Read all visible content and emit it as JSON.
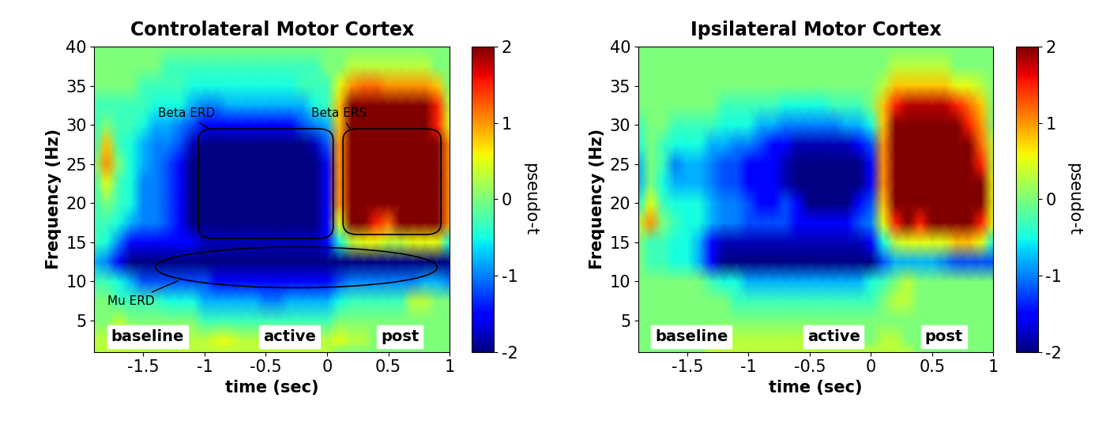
{
  "chart_data": [
    {
      "type": "heatmap",
      "title": "Controlateral Motor Cortex",
      "x_label": "time (sec)",
      "y_label": "Frequency (Hz)",
      "x": [
        -1.9,
        -1.8,
        -1.7,
        -1.6,
        -1.5,
        -1.4,
        -1.3,
        -1.2,
        -1.1,
        -1,
        -0.9,
        -0.8,
        -0.7,
        -0.6,
        -0.5,
        -0.4,
        -0.3,
        -0.2,
        -0.1,
        0,
        0.1,
        0.2,
        0.3,
        0.4,
        0.5,
        0.6,
        0.7,
        0.8,
        0.9,
        1
      ],
      "y": [
        1,
        2.5,
        5,
        7.5,
        10,
        12.5,
        15,
        17.5,
        20,
        22.5,
        25,
        27.5,
        30,
        32.5,
        35,
        37.5,
        40
      ],
      "cells": [
        [
          0.3,
          0.3,
          0.3,
          0.3,
          0.3,
          0.3,
          0.3,
          0.3,
          0.3,
          0.3,
          0.3,
          0.3,
          0.3,
          0.3,
          0.3,
          0.3,
          0.3,
          0.3,
          0.3,
          0.3,
          0,
          0,
          0,
          0,
          0,
          0,
          0,
          0,
          0,
          0
        ],
        [
          0.3,
          0.3,
          0.5,
          0.3,
          0,
          0,
          0.3,
          0.3,
          0.3,
          0.3,
          0.5,
          0.5,
          0.3,
          0.3,
          0.3,
          0.3,
          0.3,
          0.3,
          0.3,
          0.3,
          0.5,
          0.3,
          0.3,
          0,
          0,
          0,
          0,
          0,
          0,
          0
        ],
        [
          0,
          0,
          0.3,
          0,
          0,
          0,
          0,
          0,
          0,
          -0.3,
          -0.3,
          -0.3,
          -0.3,
          -0.3,
          -0.3,
          -0.3,
          -0.3,
          -0.3,
          -0.3,
          -0.3,
          0,
          0,
          0,
          0,
          0,
          0,
          0,
          0,
          0,
          0
        ],
        [
          0,
          0,
          -0.3,
          -0.3,
          -0.3,
          -0.3,
          -0.5,
          -0.5,
          -0.5,
          -0.8,
          -0.8,
          -0.8,
          -0.8,
          -0.8,
          -1,
          -1,
          -0.8,
          -0.8,
          -0.8,
          -0.8,
          -0.5,
          -0.3,
          -0.3,
          -0.3,
          -0.3,
          -0.3,
          0.3,
          0.3,
          0,
          0
        ],
        [
          -0.3,
          -0.3,
          -0.5,
          -0.8,
          -1.2,
          -1.2,
          -1.2,
          -1.2,
          -1.2,
          -1.2,
          -1.5,
          -1.5,
          -1.5,
          -1.5,
          -1.5,
          -1.5,
          -1.5,
          -1.5,
          -1.5,
          -1.5,
          -1.2,
          -1,
          -1,
          -1,
          -1,
          -1,
          -1,
          -0.8,
          -0.8,
          -1
        ],
        [
          -0.8,
          -1,
          -1.5,
          -2,
          -2,
          -2,
          -2,
          -2,
          -2,
          -2,
          -2,
          -2,
          -2,
          -2,
          -2,
          -2,
          -2,
          -2,
          -2,
          -2,
          -2,
          -2,
          -2,
          -2,
          -2,
          -2,
          -2,
          -2,
          -2,
          -2
        ],
        [
          -0.3,
          -0.5,
          -1,
          -1.5,
          -1.5,
          -1.5,
          -1.5,
          -1.5,
          -1.5,
          -1.8,
          -1.8,
          -1.8,
          -1.8,
          -1.8,
          -1.8,
          -1.8,
          -1.8,
          -1.8,
          -1.8,
          -1.5,
          -0.5,
          0.3,
          0.5,
          0.5,
          0.3,
          0.3,
          0.5,
          0.5,
          0.5,
          -0.5
        ],
        [
          -0.3,
          -0.3,
          -0.5,
          -0.8,
          -1,
          -1,
          -1.2,
          -1.5,
          -2,
          -2,
          -2,
          -2,
          -2,
          -2,
          -2,
          -2,
          -2,
          -2,
          -2,
          -1.5,
          0.5,
          2,
          2,
          1.5,
          1.2,
          2,
          2,
          2,
          2,
          1
        ],
        [
          -0.3,
          0,
          -0.3,
          -0.5,
          -1,
          -1,
          -1.2,
          -1.5,
          -2,
          -2,
          -2,
          -2,
          -2,
          -2,
          -2,
          -2,
          -2,
          -2,
          -2,
          -1.5,
          1,
          2,
          2,
          2,
          2,
          2,
          2,
          2,
          2,
          1
        ],
        [
          -0.3,
          0.5,
          -0.3,
          -0.5,
          -1,
          -1,
          -1.2,
          -1.5,
          -2,
          -2,
          -2,
          -2,
          -2,
          -2,
          -2,
          -2,
          -2,
          -2,
          -2,
          -1.5,
          1,
          2,
          2,
          2,
          2,
          2,
          2,
          2,
          2,
          1
        ],
        [
          0,
          1,
          0,
          -0.5,
          -0.8,
          -1,
          -1.2,
          -1.5,
          -2,
          -2,
          -2,
          -2,
          -2,
          -2,
          -2,
          -2,
          -2,
          -2,
          -2,
          -1.5,
          1,
          2,
          2,
          2,
          2,
          2,
          2,
          2,
          2,
          1
        ],
        [
          -0.3,
          0.8,
          -0.3,
          -0.5,
          -0.8,
          -1,
          -1,
          -1.2,
          -1.8,
          -2,
          -2,
          -2,
          -2,
          -2,
          -2,
          -2,
          -2,
          -2,
          -1.8,
          -1.2,
          1,
          2,
          2,
          2,
          2,
          2,
          2,
          2,
          2,
          1
        ],
        [
          -0.3,
          0,
          -0.3,
          -0.3,
          -0.5,
          -0.8,
          -0.8,
          -1,
          -1.2,
          -1.5,
          -1.5,
          -1.5,
          -1.5,
          -1.5,
          -1.5,
          -1.5,
          -1.5,
          -1.2,
          -1,
          -0.8,
          0.8,
          2,
          2,
          2,
          2,
          2,
          2,
          2,
          1.5,
          0.5
        ],
        [
          -0.3,
          -0.3,
          -0.3,
          -0.3,
          -0.3,
          -0.5,
          -0.5,
          -0.5,
          -0.8,
          -1,
          -1,
          -0.8,
          -0.8,
          -0.8,
          -0.8,
          -0.8,
          -0.8,
          -0.8,
          -0.5,
          -0.3,
          0.8,
          2,
          2,
          2,
          2,
          2,
          2,
          2,
          1.5,
          0.3
        ],
        [
          0,
          0,
          0,
          0,
          -0.3,
          -0.3,
          -0.3,
          -0.3,
          -0.5,
          -0.5,
          -0.5,
          -0.5,
          -0.5,
          -0.5,
          -0.5,
          -0.5,
          -0.5,
          -0.3,
          -0.3,
          -0.3,
          0.5,
          1,
          1.2,
          1.2,
          1,
          1,
          1,
          1,
          0.8,
          0
        ],
        [
          0,
          0,
          0,
          0,
          0,
          0,
          -0.3,
          -0.3,
          -0.3,
          -0.3,
          -0.3,
          -0.3,
          -0.3,
          -0.3,
          -0.3,
          -0.3,
          -0.3,
          -0.3,
          -0.3,
          0,
          0,
          0.3,
          0.3,
          0.3,
          0.3,
          0.3,
          0.3,
          0.3,
          0,
          0
        ],
        [
          0,
          0,
          0,
          0,
          0,
          0,
          0,
          0,
          0,
          0,
          0,
          0,
          0,
          0,
          0,
          0,
          0,
          0,
          0,
          0,
          0,
          0,
          0,
          0,
          0,
          0,
          0,
          0,
          0,
          0
        ]
      ],
      "xlim": [
        -1.9,
        1
      ],
      "ylim": [
        1,
        40
      ],
      "xticks": [
        -1.5,
        -1,
        -0.5,
        0,
        0.5,
        1
      ],
      "yticks": [
        5,
        10,
        15,
        20,
        25,
        30,
        35,
        40
      ],
      "colorbar": {
        "label": "pseudo-t",
        "range": [
          -2,
          2
        ],
        "ticks": [
          -2,
          -1,
          0,
          1,
          2
        ]
      },
      "period_labels": [
        "baseline",
        "active",
        "post"
      ],
      "region_labels": [
        "Beta ERD",
        "Beta ERS",
        "Mu ERD"
      ]
    },
    {
      "type": "heatmap",
      "title": "Ipsilateral Motor Cortex",
      "x_label": "time (sec)",
      "y_label": "Frequency (Hz)",
      "x": [
        -1.9,
        -1.8,
        -1.7,
        -1.6,
        -1.5,
        -1.4,
        -1.3,
        -1.2,
        -1.1,
        -1,
        -0.9,
        -0.8,
        -0.7,
        -0.6,
        -0.5,
        -0.4,
        -0.3,
        -0.2,
        -0.1,
        0,
        0.1,
        0.2,
        0.3,
        0.4,
        0.5,
        0.6,
        0.7,
        0.8,
        0.9,
        1
      ],
      "y": [
        1,
        2.5,
        5,
        7.5,
        10,
        12.5,
        15,
        17.5,
        20,
        22.5,
        25,
        27.5,
        30,
        32.5,
        35,
        37.5,
        40
      ],
      "cells": [
        [
          0,
          0,
          0,
          0,
          0,
          0,
          0.3,
          0.3,
          0.3,
          0.3,
          0.3,
          0.3,
          0.3,
          0.3,
          0.3,
          0.3,
          0.3,
          0.3,
          0.3,
          0.3,
          0.3,
          0.3,
          0.3,
          0,
          0,
          0,
          0,
          0,
          0,
          0
        ],
        [
          0,
          0,
          0,
          0,
          0,
          0,
          0.3,
          0.3,
          0.3,
          0.3,
          0.3,
          0.3,
          0.3,
          0.3,
          0.3,
          0,
          0,
          0,
          0,
          0,
          0.3,
          0.3,
          0,
          0,
          0,
          0,
          0,
          0,
          0,
          0
        ],
        [
          0,
          0,
          0,
          0,
          0,
          0,
          0,
          0,
          0,
          0,
          0,
          0,
          0,
          0,
          0,
          0,
          0,
          0,
          0,
          0,
          0,
          0,
          0,
          0,
          0,
          0,
          0,
          0,
          0,
          0
        ],
        [
          0,
          0,
          0,
          0,
          0,
          0,
          0,
          0,
          -0.3,
          -0.3,
          -0.3,
          -0.3,
          -0.3,
          -0.3,
          -0.3,
          -0.3,
          -0.3,
          -0.3,
          -0.3,
          -0.3,
          0,
          0.3,
          0.3,
          0,
          0,
          0,
          0,
          0,
          0,
          0
        ],
        [
          0,
          0,
          0,
          0,
          0,
          0,
          -0.3,
          -0.5,
          -0.5,
          -0.8,
          -0.8,
          -0.8,
          -0.8,
          -0.8,
          -0.8,
          -0.8,
          -0.8,
          -0.8,
          -0.8,
          -0.5,
          -0.3,
          0,
          0.3,
          0,
          0,
          0,
          0,
          0,
          0,
          0
        ],
        [
          0,
          -0.3,
          -0.3,
          -0.5,
          -0.5,
          -0.8,
          -1.5,
          -2,
          -2,
          -2,
          -2,
          -2,
          -2,
          -2,
          -2,
          -2,
          -2,
          -2,
          -2,
          -2,
          -1.2,
          -0.8,
          -0.8,
          -0.8,
          -0.8,
          -1,
          -1.2,
          -1.2,
          -1.2,
          -1.2
        ],
        [
          0,
          -0.3,
          -0.3,
          -0.5,
          -0.5,
          -0.8,
          -1.5,
          -1.8,
          -1.8,
          -1.8,
          -1.8,
          -1.8,
          -1.8,
          -1.8,
          -1.8,
          -1.8,
          -1.8,
          -1.8,
          -1.8,
          -1.5,
          -0.5,
          0.3,
          0.5,
          0.5,
          0.5,
          0.5,
          0.8,
          0.8,
          0.5,
          -0.5
        ],
        [
          0.3,
          1,
          0,
          -0.3,
          -0.5,
          -0.5,
          -0.8,
          -1,
          -1,
          -1.2,
          -1.2,
          -1.2,
          -1.2,
          -1.5,
          -1.5,
          -1.5,
          -1.5,
          -1.5,
          -1.2,
          -1,
          0.5,
          1.5,
          2,
          1.5,
          2,
          2,
          2,
          2,
          1.5,
          0.5
        ],
        [
          -0.5,
          0.5,
          -0.3,
          -0.5,
          -0.5,
          -0.5,
          -0.8,
          -1,
          -1,
          -1.2,
          -1.5,
          -1.5,
          -1.2,
          -1.5,
          -2,
          -2,
          -2,
          -2,
          -1.5,
          -1.2,
          0.8,
          2,
          2,
          2,
          2,
          2,
          2,
          2,
          2,
          0.5
        ],
        [
          -0.8,
          0,
          -0.5,
          -0.8,
          -0.8,
          -0.8,
          -1,
          -1.2,
          -1.2,
          -1.5,
          -1.5,
          -1.5,
          -1.8,
          -2,
          -2,
          -2,
          -2,
          -2,
          -2,
          -1.5,
          1,
          2,
          2,
          2,
          2,
          2,
          2,
          2,
          2,
          0.5
        ],
        [
          -0.8,
          0,
          -0.3,
          -1,
          -0.8,
          -0.8,
          -1,
          -1.2,
          -1.2,
          -1.5,
          -1.5,
          -1.5,
          -1.8,
          -2,
          -2,
          -2,
          -2,
          -2,
          -2,
          -1.5,
          1,
          2,
          2,
          2,
          2,
          2,
          2,
          2,
          1.5,
          0.3
        ],
        [
          -0.5,
          0,
          -0.3,
          -0.5,
          -0.5,
          -0.5,
          -0.8,
          -0.8,
          -1,
          -1,
          -1.2,
          -1.5,
          -1.5,
          -1.8,
          -1.8,
          -1.8,
          -1.8,
          -1.8,
          -1.5,
          -1.2,
          1,
          2,
          2,
          2,
          2,
          2,
          2,
          2,
          1.2,
          0.3
        ],
        [
          -0.3,
          0,
          0,
          -0.3,
          -0.3,
          -0.3,
          -0.3,
          -0.5,
          -0.5,
          -0.5,
          -0.8,
          -0.8,
          -1,
          -1,
          -1,
          -1,
          -1,
          -0.8,
          -0.8,
          -0.5,
          0.8,
          2,
          2,
          2,
          2,
          2,
          2,
          1.5,
          1,
          0
        ],
        [
          0,
          0,
          0,
          0,
          0,
          0,
          0,
          -0.3,
          -0.3,
          -0.3,
          -0.3,
          -0.3,
          -0.5,
          -0.5,
          -0.5,
          -0.5,
          -0.3,
          -0.3,
          -0.3,
          0,
          0.8,
          1.5,
          1.8,
          1.8,
          1.8,
          1.8,
          1.5,
          1.2,
          0.8,
          0
        ],
        [
          0,
          0,
          0,
          0,
          0,
          0,
          0,
          0,
          0,
          0,
          0,
          0,
          0,
          0,
          0,
          0,
          0,
          0,
          0,
          0,
          0.3,
          0.8,
          0.8,
          0.8,
          0.8,
          0.8,
          0.5,
          0.5,
          0.3,
          0
        ],
        [
          0,
          0,
          0,
          0,
          0,
          0,
          0,
          0,
          0,
          0,
          0,
          0,
          0,
          0,
          0,
          0,
          0,
          0,
          0,
          0,
          0,
          0.3,
          0.3,
          0.3,
          0.3,
          0.3,
          0,
          0,
          0,
          0
        ],
        [
          0,
          0,
          0,
          0,
          0,
          0,
          0,
          0,
          0,
          0,
          0,
          0,
          0,
          0,
          0,
          0,
          0,
          0,
          0,
          0,
          0,
          0,
          0,
          0,
          0,
          0,
          0,
          0,
          0,
          0
        ]
      ],
      "xlim": [
        -1.9,
        1
      ],
      "ylim": [
        1,
        40
      ],
      "xticks": [
        -1.5,
        -1,
        -0.5,
        0,
        0.5,
        1
      ],
      "yticks": [
        5,
        10,
        15,
        20,
        25,
        30,
        35,
        40
      ],
      "colorbar": {
        "label": "pseudo-t",
        "range": [
          -2,
          2
        ],
        "ticks": [
          -2,
          -1,
          0,
          1,
          2
        ]
      },
      "period_labels": [
        "baseline",
        "active",
        "post"
      ]
    }
  ]
}
